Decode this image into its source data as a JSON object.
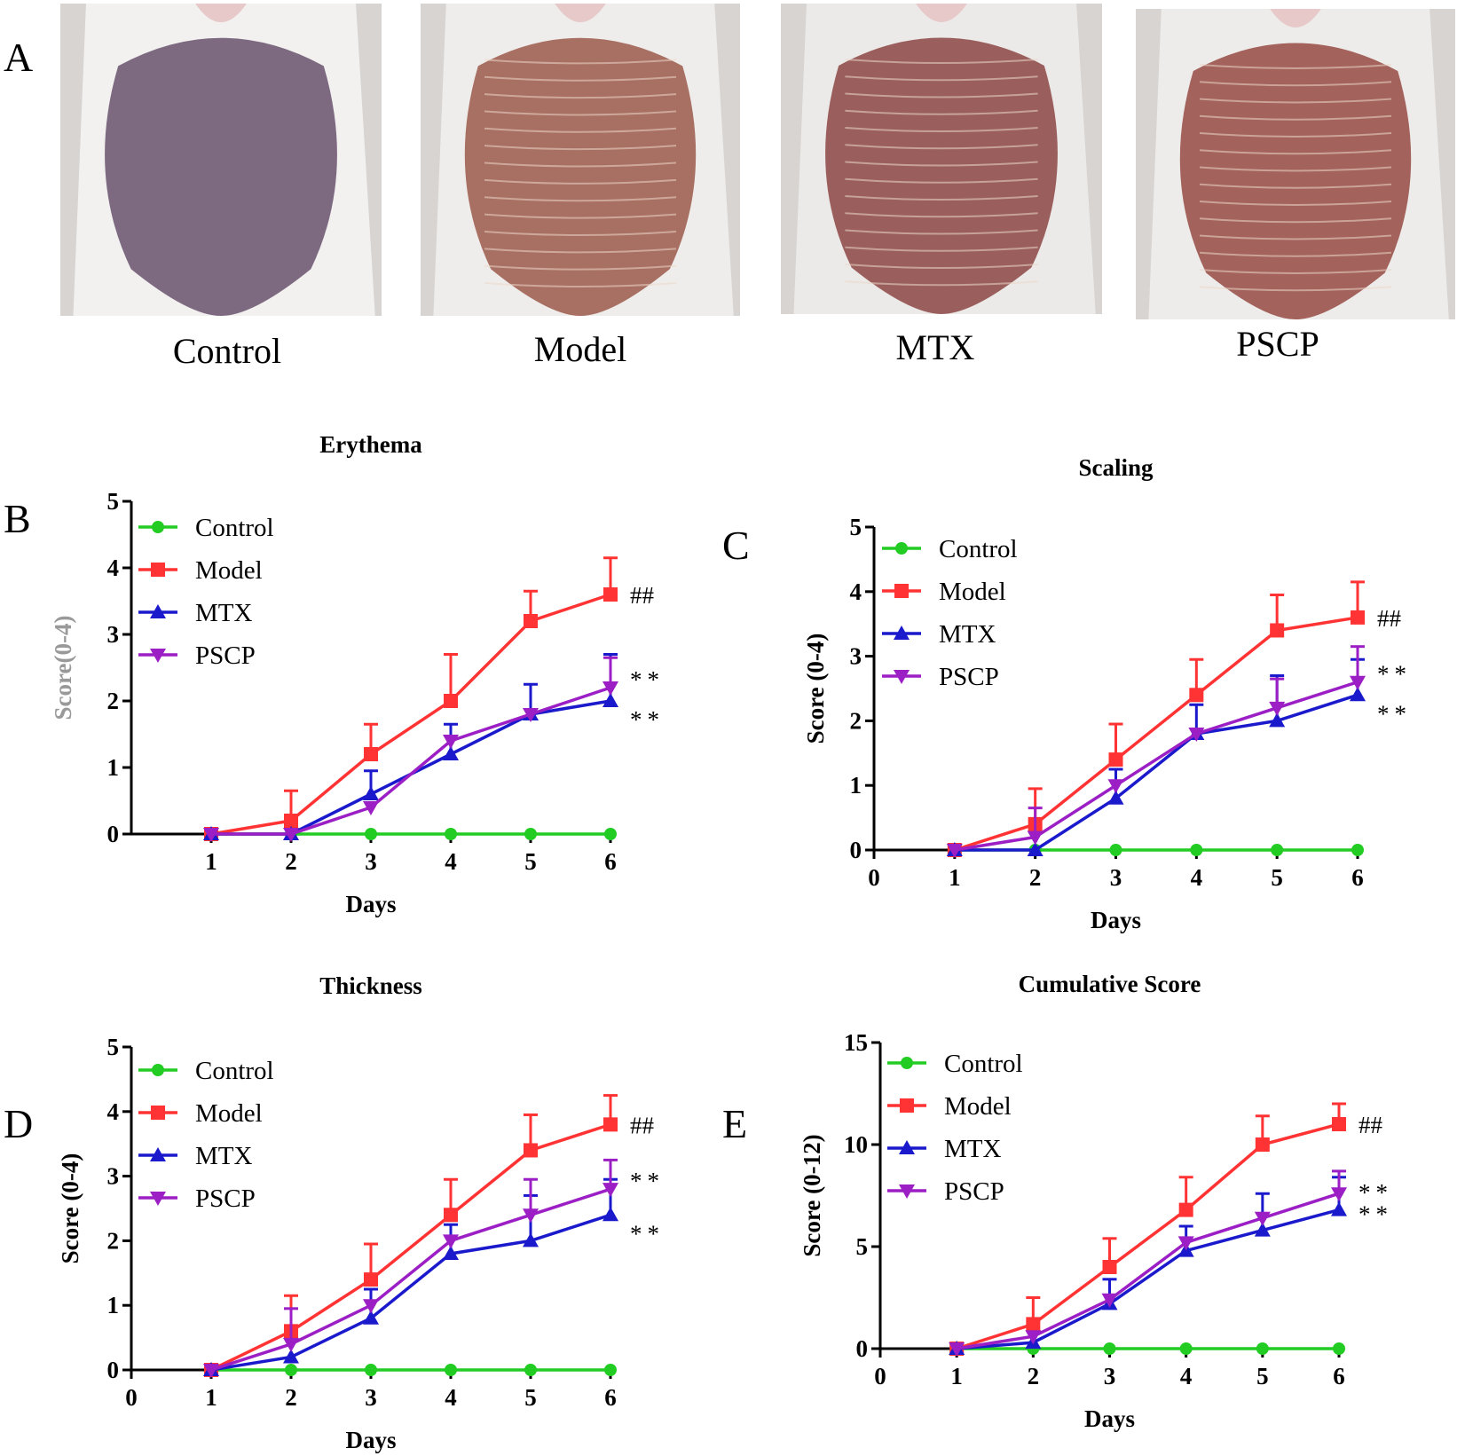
{
  "panel_letters": {
    "a": "A",
    "b": "B",
    "c": "C",
    "d": "D",
    "e": "E"
  },
  "photos": [
    {
      "label": "Control",
      "skin": "#7d6a80",
      "fur": "#f2f1f0"
    },
    {
      "label": "Model",
      "skin": "#a86f63",
      "fur": "#efedeb"
    },
    {
      "label": "MTX",
      "skin": "#9a5f5c",
      "fur": "#eceae8"
    },
    {
      "label": "PSCP",
      "skin": "#a3625c",
      "fur": "#eeecea"
    }
  ],
  "colors": {
    "Control": "#22cc22",
    "Model": "#ff3333",
    "MTX": "#1a1acc",
    "PSCP": "#9b1fc4"
  },
  "chart_data": [
    {
      "id": "B",
      "type": "line",
      "title": "Erythema",
      "xlabel": "Days",
      "ylabel": "Score(0-4)",
      "x": [
        1,
        2,
        3,
        4,
        5,
        6
      ],
      "xticks": [
        "1",
        "2",
        "3",
        "4",
        "5",
        "6"
      ],
      "ylim": [
        0,
        5
      ],
      "yticks": [
        0,
        1,
        2,
        3,
        4,
        5
      ],
      "series": [
        {
          "name": "Control",
          "marker": "circle",
          "values": [
            0,
            0,
            0,
            0,
            0,
            0
          ],
          "err": [
            0,
            0,
            0,
            0,
            0,
            0
          ]
        },
        {
          "name": "Model",
          "marker": "square",
          "values": [
            0,
            0.2,
            1.2,
            2.0,
            3.2,
            3.6
          ],
          "err": [
            0,
            0.45,
            0.45,
            0.7,
            0.45,
            0.55
          ]
        },
        {
          "name": "MTX",
          "marker": "triangle-up",
          "values": [
            0,
            0,
            0.6,
            1.2,
            1.8,
            2.0
          ],
          "err": [
            0,
            0,
            0.35,
            0.45,
            0.45,
            0.7
          ]
        },
        {
          "name": "PSCP",
          "marker": "triangle-down",
          "values": [
            0,
            0,
            0.4,
            1.4,
            1.8,
            2.2
          ],
          "err": [
            0,
            0,
            0,
            0,
            0,
            0.45
          ]
        }
      ],
      "annotations": [
        {
          "text": "##",
          "series": "Model"
        },
        {
          "text": "**",
          "series": "PSCP"
        },
        {
          "text": "**",
          "series": "MTX"
        }
      ]
    },
    {
      "id": "C",
      "type": "line",
      "title": "Scaling",
      "xlabel": "Days",
      "ylabel": "Score (0-4)",
      "x": [
        1,
        2,
        3,
        4,
        5,
        6
      ],
      "xticks": [
        "0",
        "1",
        "2",
        "3",
        "4",
        "5",
        "6"
      ],
      "ylim": [
        0,
        5
      ],
      "yticks": [
        0,
        1,
        2,
        3,
        4,
        5
      ],
      "series": [
        {
          "name": "Control",
          "marker": "circle",
          "values": [
            0,
            0,
            0,
            0,
            0,
            0
          ],
          "err": [
            0,
            0,
            0,
            0,
            0,
            0
          ]
        },
        {
          "name": "Model",
          "marker": "square",
          "values": [
            0,
            0.4,
            1.4,
            2.4,
            3.4,
            3.6
          ],
          "err": [
            0,
            0.55,
            0.55,
            0.55,
            0.55,
            0.55
          ]
        },
        {
          "name": "MTX",
          "marker": "triangle-up",
          "values": [
            0,
            0,
            0.8,
            1.8,
            2.0,
            2.4
          ],
          "err": [
            0,
            0,
            0.45,
            0.45,
            0.7,
            0.55
          ]
        },
        {
          "name": "PSCP",
          "marker": "triangle-down",
          "values": [
            0,
            0.2,
            1.0,
            1.8,
            2.2,
            2.6
          ],
          "err": [
            0,
            0.45,
            0,
            0,
            0.45,
            0.55
          ]
        }
      ],
      "annotations": [
        {
          "text": "##",
          "series": "Model"
        },
        {
          "text": "**",
          "series": "PSCP"
        },
        {
          "text": "**",
          "series": "MTX"
        }
      ]
    },
    {
      "id": "D",
      "type": "line",
      "title": "Thickness",
      "xlabel": "Days",
      "ylabel": "Score (0-4)",
      "x": [
        1,
        2,
        3,
        4,
        5,
        6
      ],
      "xticks": [
        "0",
        "1",
        "2",
        "3",
        "4",
        "5",
        "6"
      ],
      "ylim": [
        0,
        5
      ],
      "yticks": [
        0,
        1,
        2,
        3,
        4,
        5
      ],
      "series": [
        {
          "name": "Control",
          "marker": "circle",
          "values": [
            0,
            0,
            0,
            0,
            0,
            0
          ],
          "err": [
            0,
            0,
            0,
            0,
            0,
            0
          ]
        },
        {
          "name": "Model",
          "marker": "square",
          "values": [
            0,
            0.6,
            1.4,
            2.4,
            3.4,
            3.8
          ],
          "err": [
            0,
            0.55,
            0.55,
            0.55,
            0.55,
            0.45
          ]
        },
        {
          "name": "MTX",
          "marker": "triangle-up",
          "values": [
            0,
            0.2,
            0.8,
            1.8,
            2.0,
            2.4
          ],
          "err": [
            0,
            0,
            0.45,
            0.45,
            0.7,
            0.55
          ]
        },
        {
          "name": "PSCP",
          "marker": "triangle-down",
          "values": [
            0,
            0.4,
            1.0,
            2.0,
            2.4,
            2.8
          ],
          "err": [
            0,
            0.55,
            0,
            0,
            0.55,
            0.45
          ]
        }
      ],
      "annotations": [
        {
          "text": "##",
          "series": "Model"
        },
        {
          "text": "**",
          "series": "PSCP"
        },
        {
          "text": "**",
          "series": "MTX"
        }
      ]
    },
    {
      "id": "E",
      "type": "line",
      "title": "Cumulative Score",
      "xlabel": "Days",
      "ylabel": "Score (0-12)",
      "x": [
        1,
        2,
        3,
        4,
        5,
        6
      ],
      "xticks": [
        "0",
        "1",
        "2",
        "3",
        "4",
        "5",
        "6"
      ],
      "ylim": [
        0,
        15
      ],
      "yticks": [
        0,
        5,
        10,
        15
      ],
      "series": [
        {
          "name": "Control",
          "marker": "circle",
          "values": [
            0,
            0,
            0,
            0,
            0,
            0
          ],
          "err": [
            0,
            0,
            0,
            0,
            0,
            0
          ]
        },
        {
          "name": "Model",
          "marker": "square",
          "values": [
            0,
            1.2,
            4.0,
            6.8,
            10.0,
            11.0
          ],
          "err": [
            0,
            1.3,
            1.4,
            1.6,
            1.4,
            1.0
          ]
        },
        {
          "name": "MTX",
          "marker": "triangle-up",
          "values": [
            0,
            0.3,
            2.2,
            4.8,
            5.8,
            6.8
          ],
          "err": [
            0,
            0,
            1.2,
            1.2,
            1.8,
            1.6
          ]
        },
        {
          "name": "PSCP",
          "marker": "triangle-down",
          "values": [
            0,
            0.6,
            2.4,
            5.2,
            6.4,
            7.6
          ],
          "err": [
            0,
            0,
            0,
            0,
            0,
            1.1
          ]
        }
      ],
      "annotations": [
        {
          "text": "##",
          "series": "Model"
        },
        {
          "text": "**",
          "series": "PSCP"
        },
        {
          "text": "**",
          "series": "MTX"
        }
      ]
    }
  ]
}
